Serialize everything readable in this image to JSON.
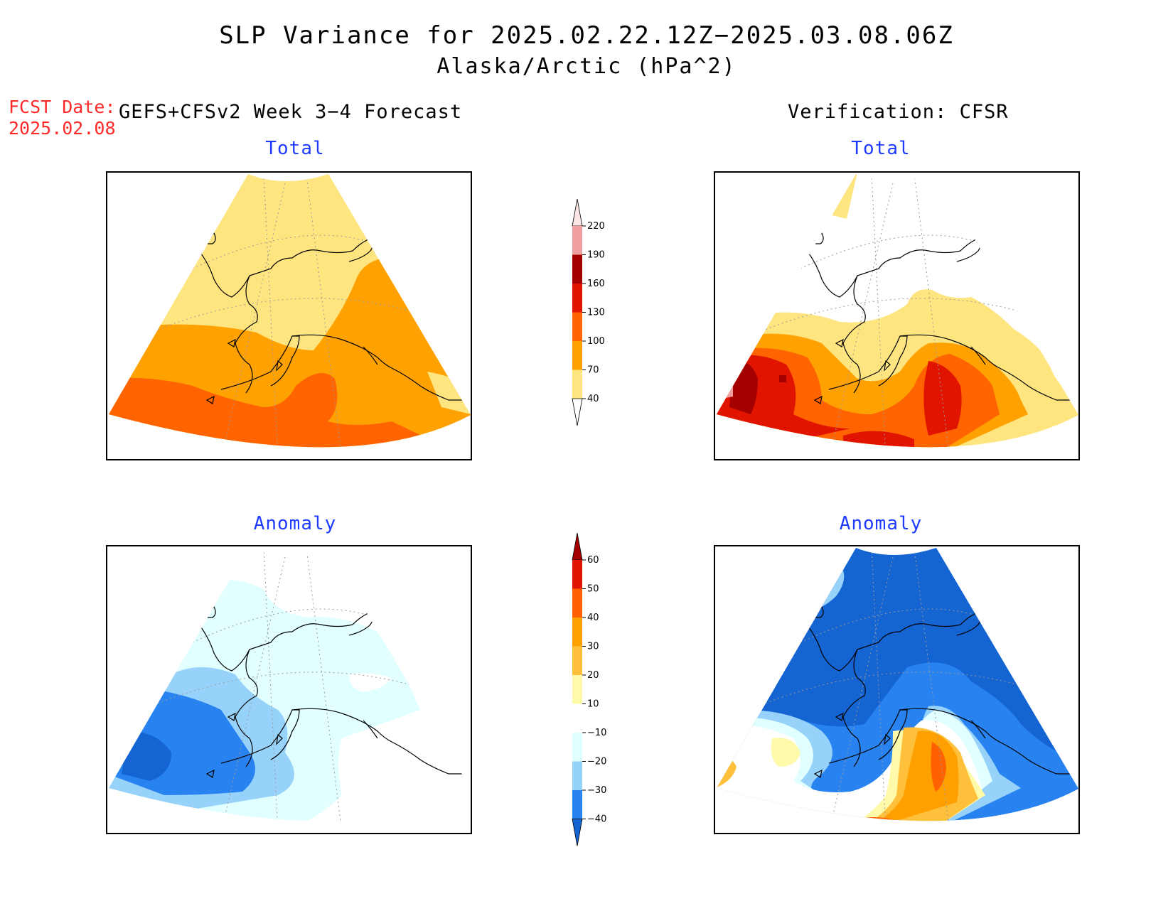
{
  "title": {
    "line1": "SLP Variance for 2025.02.22.12Z−2025.03.08.06Z",
    "line2": "Alaska/Arctic (hPa^2)"
  },
  "forecast_date": {
    "label": "FCST Date:",
    "value": "2025.02.08"
  },
  "columns": {
    "left": "GEFS+CFSv2 Week 3−4 Forecast",
    "right": "Verification: CFSR"
  },
  "panels": {
    "top_left": "Total",
    "top_right": "Total",
    "bottom_left": "Anomaly",
    "bottom_right": "Anomaly"
  },
  "colorbars": {
    "total": {
      "ticks": [
        "40",
        "70",
        "100",
        "130",
        "160",
        "190",
        "220"
      ],
      "colors": [
        "#ffffff",
        "#ffe57f",
        "#ffa100",
        "#ff6400",
        "#e11400",
        "#a50000",
        "#f0a0a0",
        "#ffe6e6"
      ]
    },
    "anomaly": {
      "ticks": [
        "−40",
        "−30",
        "−20",
        "−10",
        "10",
        "20",
        "30",
        "40",
        "50",
        "60"
      ],
      "colors": [
        "#1464d2",
        "#2882f0",
        "#96d2fa",
        "#e1ffff",
        "#ffffff",
        "#fffaaa",
        "#ffc03c",
        "#ffa000",
        "#ff6000",
        "#e11400",
        "#a50000"
      ]
    }
  },
  "map_legend_colors": {
    "yellow": "#ffe57f",
    "orange": "#ffa100",
    "dark_orange": "#ff6400",
    "red": "#e11400",
    "dark_red": "#a50000",
    "pink": "#f0a0a0",
    "light_cyan": "#e1ffff",
    "light_blue": "#96d2fa",
    "mid_blue": "#2882f0",
    "dark_blue": "#1464d2",
    "pale_yellow": "#fffaaa",
    "light_orange": "#ffc03c"
  }
}
